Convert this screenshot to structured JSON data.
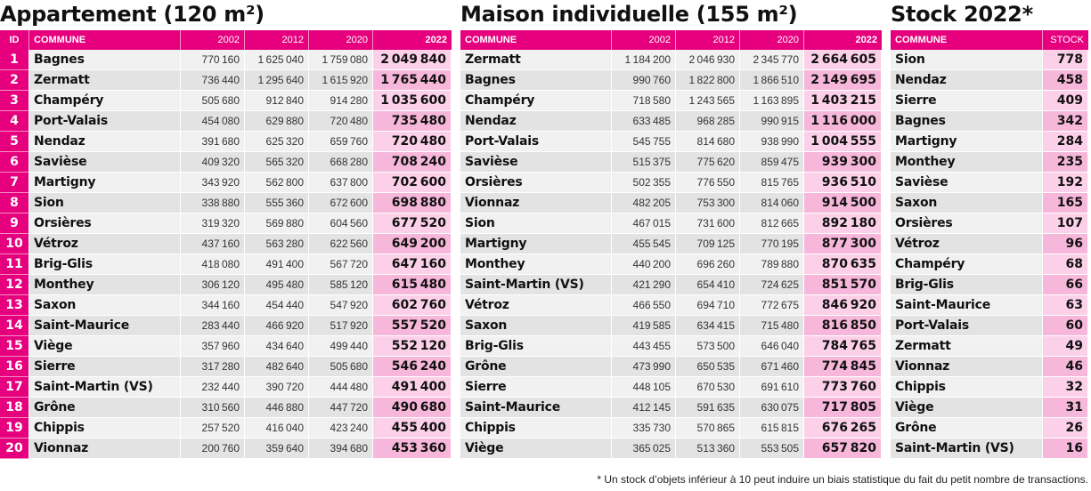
{
  "appartement": {
    "title": "Appartement (120 m²)",
    "headers": {
      "id": "ID",
      "commune": "COMMUNE",
      "y2002": "2002",
      "y2012": "2012",
      "y2020": "2020",
      "y2022": "2022"
    },
    "rows": [
      [
        "1",
        "Bagnes",
        "770160",
        "1625040",
        "1759080",
        "2049840"
      ],
      [
        "2",
        "Zermatt",
        "736440",
        "1295640",
        "1615920",
        "1765440"
      ],
      [
        "3",
        "Champéry",
        "505680",
        "912840",
        "914280",
        "1035600"
      ],
      [
        "4",
        "Port-Valais",
        "454080",
        "629880",
        "720480",
        "735480"
      ],
      [
        "5",
        "Nendaz",
        "391680",
        "625320",
        "659760",
        "720480"
      ],
      [
        "6",
        "Savièse",
        "409320",
        "565320",
        "668280",
        "708240"
      ],
      [
        "7",
        "Martigny",
        "343920",
        "562800",
        "637800",
        "702600"
      ],
      [
        "8",
        "Sion",
        "338880",
        "555360",
        "672600",
        "698880"
      ],
      [
        "9",
        "Orsières",
        "319320",
        "569880",
        "604560",
        "677520"
      ],
      [
        "10",
        "Vétroz",
        "437160",
        "563280",
        "622560",
        "649200"
      ],
      [
        "11",
        "Brig-Glis",
        "418080",
        "491400",
        "567720",
        "647160"
      ],
      [
        "12",
        "Monthey",
        "306120",
        "495480",
        "585120",
        "615480"
      ],
      [
        "13",
        "Saxon",
        "344160",
        "454440",
        "547920",
        "602760"
      ],
      [
        "14",
        "Saint-Maurice",
        "283440",
        "466920",
        "517920",
        "557520"
      ],
      [
        "15",
        "Viège",
        "357960",
        "434640",
        "499440",
        "552120"
      ],
      [
        "16",
        "Sierre",
        "317280",
        "482640",
        "505680",
        "546240"
      ],
      [
        "17",
        "Saint-Martin (VS)",
        "232440",
        "390720",
        "444480",
        "491400"
      ],
      [
        "18",
        "Grône",
        "310560",
        "446880",
        "447720",
        "490680"
      ],
      [
        "19",
        "Chippis",
        "257520",
        "416040",
        "423240",
        "455400"
      ],
      [
        "20",
        "Vionnaz",
        "200760",
        "359640",
        "394680",
        "453360"
      ]
    ]
  },
  "maison": {
    "title": "Maison individuelle (155 m²)",
    "headers": {
      "commune": "COMMUNE",
      "y2002": "2002",
      "y2012": "2012",
      "y2020": "2020",
      "y2022": "2022"
    },
    "rows": [
      [
        "Zermatt",
        "1184200",
        "2046930",
        "2345770",
        "2664605"
      ],
      [
        "Bagnes",
        "990760",
        "1822800",
        "1866510",
        "2149695"
      ],
      [
        "Champéry",
        "718580",
        "1243565",
        "1163895",
        "1403215"
      ],
      [
        "Nendaz",
        "633485",
        "968285",
        "990915",
        "1116000"
      ],
      [
        "Port-Valais",
        "545755",
        "814680",
        "938990",
        "1004555"
      ],
      [
        "Savièse",
        "515375",
        "775620",
        "859475",
        "939300"
      ],
      [
        "Orsières",
        "502355",
        "776550",
        "815765",
        "936510"
      ],
      [
        "Vionnaz",
        "482205",
        "753300",
        "814060",
        "914500"
      ],
      [
        "Sion",
        "467015",
        "731600",
        "812665",
        "892180"
      ],
      [
        "Martigny",
        "455545",
        "709125",
        "770195",
        "877300"
      ],
      [
        "Monthey",
        "440200",
        "696260",
        "789880",
        "870635"
      ],
      [
        "Saint-Martin (VS)",
        "421290",
        "654410",
        "724625",
        "851570"
      ],
      [
        "Vétroz",
        "466550",
        "694710",
        "772675",
        "846920"
      ],
      [
        "Saxon",
        "419585",
        "634415",
        "715480",
        "816850"
      ],
      [
        "Brig-Glis",
        "443455",
        "573500",
        "646040",
        "784765"
      ],
      [
        "Grône",
        "473990",
        "650535",
        "671460",
        "774845"
      ],
      [
        "Sierre",
        "448105",
        "670530",
        "691610",
        "773760"
      ],
      [
        "Saint-Maurice",
        "412145",
        "591635",
        "630075",
        "717805"
      ],
      [
        "Chippis",
        "335730",
        "570865",
        "615815",
        "676265"
      ],
      [
        "Viège",
        "365025",
        "513360",
        "553505",
        "657820"
      ]
    ]
  },
  "stock": {
    "title": "Stock 2022*",
    "headers": {
      "commune": "COMMUNE",
      "stock": "STOCK"
    },
    "rows": [
      [
        "Sion",
        "778"
      ],
      [
        "Nendaz",
        "458"
      ],
      [
        "Sierre",
        "409"
      ],
      [
        "Bagnes",
        "342"
      ],
      [
        "Martigny",
        "284"
      ],
      [
        "Monthey",
        "235"
      ],
      [
        "Savièse",
        "192"
      ],
      [
        "Saxon",
        "165"
      ],
      [
        "Orsières",
        "107"
      ],
      [
        "Vétroz",
        "96"
      ],
      [
        "Champéry",
        "68"
      ],
      [
        "Brig-Glis",
        "66"
      ],
      [
        "Saint-Maurice",
        "63"
      ],
      [
        "Port-Valais",
        "60"
      ],
      [
        "Zermatt",
        "49"
      ],
      [
        "Vionnaz",
        "46"
      ],
      [
        "Chippis",
        "32"
      ],
      [
        "Viège",
        "31"
      ],
      [
        "Grône",
        "26"
      ],
      [
        "Saint-Martin (VS)",
        "16"
      ]
    ]
  },
  "footnote": "* Un stock d’objets inférieur à 10 peut induire un biais statistique du fait du petit nombre de transactions.",
  "colors": {
    "accent": "#e6007e",
    "highlight": "#fbd0e8",
    "row_light": "#f1f1f1",
    "row_dark": "#e3e3e3"
  }
}
